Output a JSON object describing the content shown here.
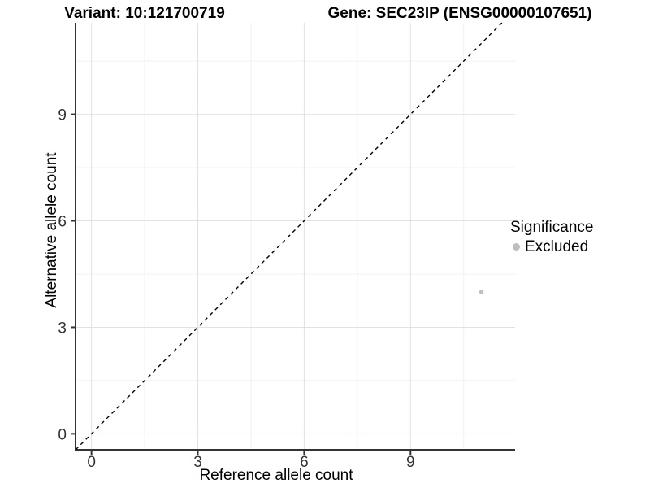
{
  "chart_data": {
    "type": "scatter",
    "title_left": "Variant: 10:121700719",
    "title_right": "Gene: SEC23IP (ENSG00000107651)",
    "xlabel": "Reference allele count",
    "ylabel": "Alternative allele count",
    "xlim": [
      -0.45,
      11.95
    ],
    "ylim": [
      -0.45,
      11.58
    ],
    "x_ticks": [
      0,
      3,
      6,
      9
    ],
    "y_ticks": [
      0,
      3,
      6,
      9
    ],
    "x_minor_gridlines": [
      1.5,
      4.5,
      7.5,
      10.5
    ],
    "y_minor_gridlines": [
      1.5,
      4.5,
      7.5,
      10.5
    ],
    "grid": "major and minor, light grey on white panel",
    "reference_line": {
      "equation": "y = x",
      "style": "dashed",
      "color": "#000000"
    },
    "series": [
      {
        "name": "Excluded",
        "marker": "circle",
        "color": "#bebebe",
        "points": [
          {
            "x": 11,
            "y": 4
          }
        ]
      }
    ],
    "legend": {
      "title": "Significance",
      "position": "right",
      "entries": [
        {
          "label": "Excluded",
          "color": "#bebebe"
        }
      ]
    }
  },
  "colors": {
    "background": "#ffffff",
    "grid_major": "#e2e2e2",
    "grid_minor": "#f0f0f0",
    "axis_line": "#333333",
    "tick_label": "#333333",
    "point": "#bebebe",
    "diagonal": "#000000"
  }
}
